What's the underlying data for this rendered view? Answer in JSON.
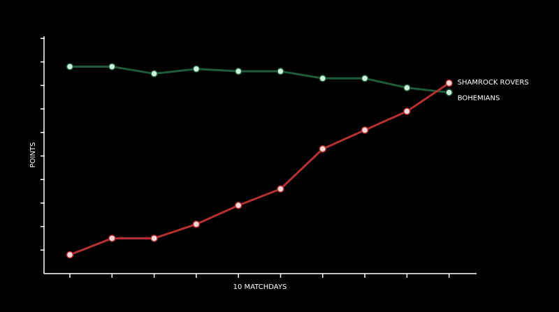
{
  "chart_data": {
    "type": "line",
    "x_label": "10 MATCHDAYS",
    "y_label": "POINTS",
    "categories": [
      null,
      null,
      null,
      null,
      null,
      null,
      null,
      null,
      null,
      null
    ],
    "series": [
      {
        "name": "BOHEMIANS",
        "color": "#1f5a3a",
        "marker_color": "#cdf2dc",
        "values": [
          8.8,
          8.8,
          8.5,
          8.7,
          8.6,
          8.6,
          8.3,
          8.3,
          7.9,
          7.7
        ]
      },
      {
        "name": "SHAMROCK ROVERS",
        "color": "#b53030",
        "marker_color": "#f6d6d6",
        "values": [
          0.8,
          1.5,
          1.5,
          2.1,
          2.9,
          3.6,
          5.3,
          6.1,
          6.9,
          8.1
        ]
      }
    ],
    "ylim": [
      0,
      10
    ],
    "yticks": [
      1,
      2,
      3,
      4,
      5,
      6,
      7,
      8,
      9,
      10
    ]
  }
}
